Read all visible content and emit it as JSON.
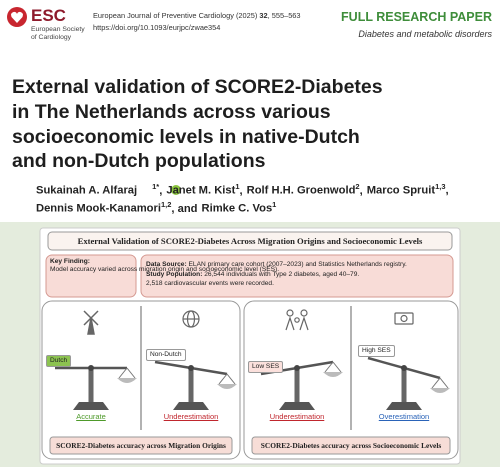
{
  "header": {
    "society": {
      "abbr": "ESC",
      "name_lines": [
        "European Society",
        "of Cardiology"
      ]
    },
    "citation": {
      "journal": "European Journal of Preventive Cardiology (2025)",
      "volume": "32",
      "pages": ", 555–563"
    },
    "doi": "https://doi.org/10.1093/eurjpc/zwae354",
    "article_type": "FULL RESEARCH PAPER",
    "section": "Diabetes and metabolic disorders"
  },
  "title_lines": [
    "External validation of SCORE2-Diabetes",
    "in The Netherlands across various",
    "socioeconomic levels in native-Dutch",
    "and non-Dutch populations"
  ],
  "authors": [
    {
      "name": "Sukainah A. Alfaraj",
      "sup": "1*",
      "sep": ","
    },
    {
      "name": "Janet M. Kist",
      "sup": "1",
      "sep": ","
    },
    {
      "name": "Rolf H.H. Groenwold",
      "sup": "2",
      "sep": ","
    },
    {
      "name": "Marco Spruit",
      "sup": "1,3",
      "sep": ","
    },
    {
      "name": "Dennis Mook-Kanamori",
      "sup": "1,2",
      "sep": ", and"
    },
    {
      "name": "Rimke C. Vos",
      "sup": "1"
    }
  ],
  "graphical_abstract": {
    "title": "External Validation of SCORE2-Diabetes Across Migration Origins and Socioeconomic Levels",
    "key_finding": {
      "label": "Key Finding:",
      "text": "Model accuracy varied across migration origin and socioeconomic level (SES)."
    },
    "data": {
      "source_label": "Data Source:",
      "source": "ELAN primary care cohort (2007–2023) and Statistics Netherlands registry.",
      "population_label": "Study Population:",
      "population": "26,544 individuals with Type 2 diabetes, aged 40–79.",
      "events": "2,518 cardiovascular events were recorded."
    },
    "panels": [
      {
        "caption": "SCORE2-Diabetes accuracy across Migration Origins",
        "groups": [
          {
            "label": "Dutch",
            "result": "Accurate"
          },
          {
            "label": "Non-Dutch",
            "result": "Underestimation"
          }
        ]
      },
      {
        "caption": "SCORE2-Diabetes accuracy across Socioeconomic Levels",
        "groups": [
          {
            "label": "Low SES",
            "result": "Underestimation"
          },
          {
            "label": "High SES",
            "result": "Overestimation"
          }
        ]
      }
    ]
  }
}
